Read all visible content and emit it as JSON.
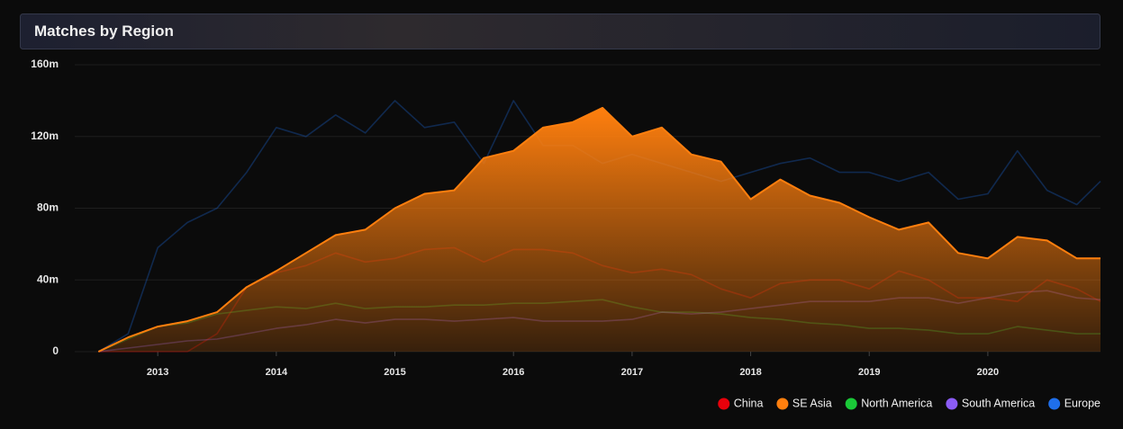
{
  "chart_data": {
    "type": "line",
    "title": "Matches by Region",
    "x": [
      2012.5,
      2012.75,
      2013,
      2013.25,
      2013.5,
      2013.75,
      2014,
      2014.25,
      2014.5,
      2014.75,
      2015,
      2015.25,
      2015.5,
      2015.75,
      2016,
      2016.25,
      2016.5,
      2016.75,
      2017,
      2017.25,
      2017.5,
      2017.75,
      2018,
      2018.25,
      2018.5,
      2018.75,
      2019,
      2019.25,
      2019.5,
      2019.75,
      2020,
      2020.25,
      2020.5,
      2020.75,
      2020.95
    ],
    "xlim": [
      2012.3,
      2020.95
    ],
    "xticks": [
      2013,
      2014,
      2015,
      2016,
      2017,
      2018,
      2019,
      2020
    ],
    "ylim": [
      0,
      160
    ],
    "yticks": [
      0,
      {
        "value": 40,
        "label": "40m"
      },
      {
        "value": 80,
        "label": "80m"
      },
      {
        "value": 120,
        "label": "120m"
      },
      {
        "value": 160,
        "label": "160m"
      }
    ],
    "grid": true,
    "legend": "bottom-right",
    "series": [
      {
        "name": "China",
        "color": "#e8000b",
        "area": false,
        "values": [
          0,
          0,
          0,
          0,
          10,
          36,
          44,
          48,
          55,
          50,
          52,
          57,
          58,
          50,
          57,
          57,
          55,
          48,
          44,
          46,
          43,
          35,
          30,
          38,
          40,
          40,
          35,
          45,
          40,
          30,
          30,
          28,
          40,
          35,
          28
        ]
      },
      {
        "name": "SE Asia",
        "color": "#ff7f0e",
        "area": true,
        "values": [
          0,
          8,
          14,
          17,
          22,
          36,
          45,
          55,
          65,
          68,
          80,
          88,
          90,
          108,
          112,
          125,
          128,
          136,
          120,
          125,
          110,
          106,
          85,
          96,
          87,
          83,
          75,
          68,
          72,
          55,
          52,
          64,
          62,
          52,
          52
        ]
      },
      {
        "name": "North America",
        "color": "#1ac938",
        "area": false,
        "values": [
          0,
          7,
          14,
          16,
          21,
          23,
          25,
          24,
          27,
          24,
          25,
          25,
          26,
          26,
          27,
          27,
          28,
          29,
          25,
          22,
          22,
          21,
          19,
          18,
          16,
          15,
          13,
          13,
          12,
          10,
          10,
          14,
          12,
          10,
          10
        ]
      },
      {
        "name": "South America",
        "color": "#8b5cf6",
        "area": false,
        "values": [
          0,
          2,
          4,
          6,
          7,
          10,
          13,
          15,
          18,
          16,
          18,
          18,
          17,
          18,
          19,
          17,
          17,
          17,
          18,
          22,
          21,
          22,
          24,
          26,
          28,
          28,
          28,
          30,
          30,
          27,
          30,
          33,
          34,
          30,
          29
        ]
      },
      {
        "name": "Europe",
        "color": "#1f6feb",
        "area": false,
        "values": [
          0,
          10,
          58,
          72,
          80,
          100,
          125,
          120,
          132,
          122,
          140,
          125,
          128,
          105,
          140,
          115,
          115,
          105,
          110,
          105,
          100,
          95,
          100,
          105,
          108,
          100,
          100,
          95,
          100,
          85,
          88,
          112,
          90,
          82,
          95
        ]
      }
    ]
  }
}
